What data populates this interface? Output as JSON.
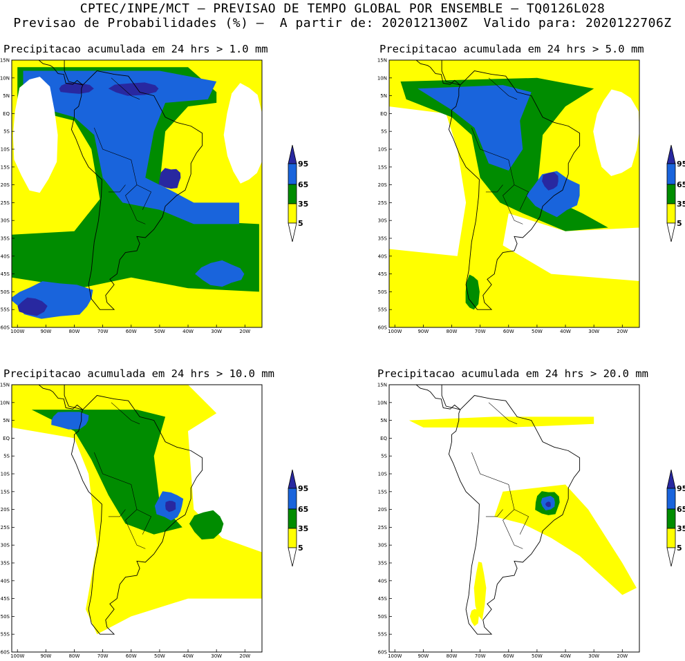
{
  "header": {
    "line1": "CPTEC/INPE/MCT – PREVISAO DE TEMPO GLOBAL POR ENSEMBLE – TQ0126L028",
    "line2": "Previsao de Probabilidades (%) –  A partir de: 2020121300Z  Valido para: 2020122706Z"
  },
  "colors": {
    "level_5_35": "#ffff00",
    "level_35_65": "#008c00",
    "level_65_95": "#1964dc",
    "level_95_plus": "#2828a0",
    "land_outline": "#000000"
  },
  "axes": {
    "lat_labels": [
      "15N",
      "10N",
      "5N",
      "EQ",
      "5S",
      "10S",
      "15S",
      "20S",
      "25S",
      "30S",
      "35S",
      "40S",
      "45S",
      "50S",
      "55S",
      "60S"
    ],
    "lon_labels": [
      "100W",
      "90W",
      "80W",
      "70W",
      "60W",
      "50W",
      "40W",
      "30W",
      "20W"
    ]
  },
  "legend": {
    "levels": [
      "95",
      "65",
      "35",
      "5"
    ]
  },
  "panels": [
    {
      "title": "Precipitacao acumulada em 24 hrs > 1.0 mm",
      "threshold_mm": 1.0
    },
    {
      "title": "Precipitacao acumulada em 24 hrs > 5.0 mm",
      "threshold_mm": 5.0
    },
    {
      "title": "Precipitacao acumulada em 24 hrs > 10.0 mm",
      "threshold_mm": 10.0
    },
    {
      "title": "Precipitacao acumulada em 24 hrs > 20.0 mm",
      "threshold_mm": 20.0
    }
  ]
}
